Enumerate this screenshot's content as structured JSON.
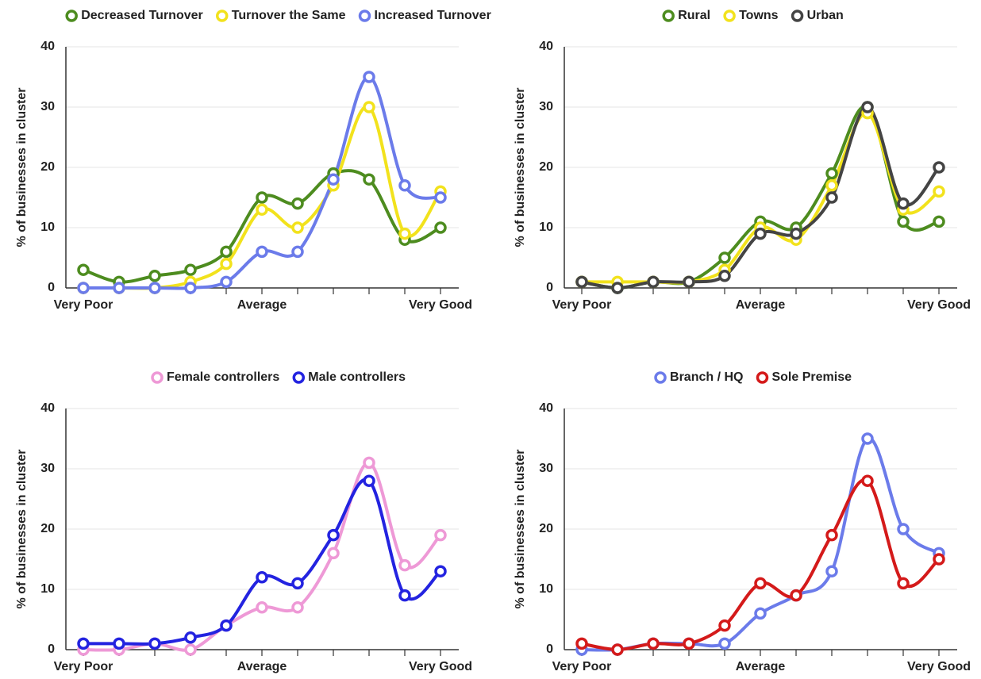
{
  "chart_data": [
    {
      "type": "line",
      "ylabel": "% of businesses in cluster",
      "categories": [
        "Very Poor",
        null,
        null,
        null,
        null,
        "Average",
        null,
        null,
        null,
        null,
        "Very Good"
      ],
      "ylim": [
        0,
        40
      ],
      "yticks": [
        0,
        10,
        20,
        30,
        40
      ],
      "grid": true,
      "series": [
        {
          "name": "Decreased Turnover",
          "color": "#4d8c1f",
          "values": [
            3,
            1,
            2,
            3,
            6,
            15,
            14,
            19,
            18,
            8,
            10
          ]
        },
        {
          "name": "Turnover the Same",
          "color": "#f2e21c",
          "values": [
            0,
            0,
            0,
            1,
            4,
            13,
            10,
            17,
            30,
            9,
            16
          ]
        },
        {
          "name": "Increased Turnover",
          "color": "#6b7bea",
          "values": [
            0,
            0,
            0,
            0,
            1,
            6,
            6,
            18,
            35,
            17,
            15
          ]
        }
      ]
    },
    {
      "type": "line",
      "ylabel": "% of businesses in cluster",
      "categories": [
        "Very Poor",
        null,
        null,
        null,
        null,
        "Average",
        null,
        null,
        null,
        null,
        "Very Good"
      ],
      "ylim": [
        0,
        40
      ],
      "yticks": [
        0,
        10,
        20,
        30,
        40
      ],
      "grid": true,
      "series": [
        {
          "name": "Rural",
          "color": "#4d8c1f",
          "values": [
            1,
            0,
            1,
            1,
            5,
            11,
            10,
            19,
            30,
            11,
            11
          ]
        },
        {
          "name": "Towns",
          "color": "#f2e21c",
          "values": [
            1,
            1,
            1,
            1,
            3,
            10,
            8,
            17,
            29,
            13,
            16
          ]
        },
        {
          "name": "Urban",
          "color": "#444444",
          "values": [
            1,
            0,
            1,
            1,
            2,
            9,
            9,
            15,
            30,
            14,
            20
          ]
        }
      ]
    },
    {
      "type": "line",
      "ylabel": "% of businesses in cluster",
      "categories": [
        "Very Poor",
        null,
        null,
        null,
        null,
        "Average",
        null,
        null,
        null,
        null,
        "Very Good"
      ],
      "ylim": [
        0,
        40
      ],
      "yticks": [
        0,
        10,
        20,
        30,
        40
      ],
      "grid": true,
      "series": [
        {
          "name": "Female controllers",
          "color": "#ee99d6",
          "values": [
            0,
            0,
            1,
            0,
            4,
            7,
            7,
            16,
            31,
            14,
            19
          ]
        },
        {
          "name": "Male controllers",
          "color": "#2323e0",
          "values": [
            1,
            1,
            1,
            2,
            4,
            12,
            11,
            19,
            28,
            9,
            13
          ]
        }
      ]
    },
    {
      "type": "line",
      "ylabel": "% of businesses in cluster",
      "categories": [
        "Very Poor",
        null,
        null,
        null,
        null,
        "Average",
        null,
        null,
        null,
        null,
        "Very Good"
      ],
      "ylim": [
        0,
        40
      ],
      "yticks": [
        0,
        10,
        20,
        30,
        40
      ],
      "grid": true,
      "series": [
        {
          "name": "Branch / HQ",
          "color": "#6b7bea",
          "values": [
            0,
            0,
            1,
            1,
            1,
            6,
            9,
            13,
            35,
            20,
            16
          ]
        },
        {
          "name": "Sole Premise",
          "color": "#d41a1a",
          "values": [
            1,
            0,
            1,
            1,
            4,
            11,
            9,
            19,
            28,
            11,
            15
          ]
        }
      ]
    }
  ]
}
